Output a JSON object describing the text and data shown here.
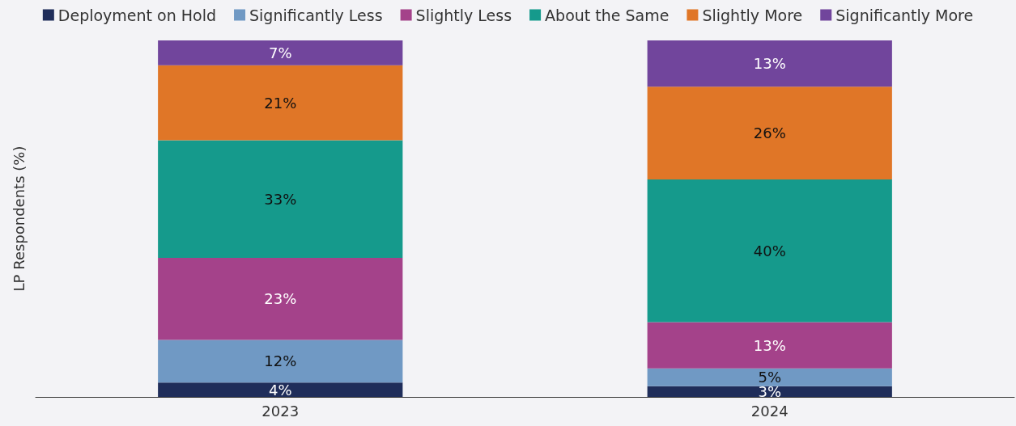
{
  "chart_data": {
    "type": "bar",
    "stacked": true,
    "ylabel": "LP Respondents (%)",
    "categories": [
      "2023",
      "2024"
    ],
    "ylim": [
      0,
      100
    ],
    "tick_labels": "x",
    "grid": false,
    "legend": "top",
    "series": [
      {
        "name": "Deployment on Hold",
        "color": "#1f2d5a",
        "values": [
          4,
          3
        ],
        "value_labels": [
          "4%",
          "3%"
        ]
      },
      {
        "name": "Significantly Less",
        "color": "#7099c4",
        "values": [
          12,
          5
        ],
        "value_labels": [
          "12%",
          "5%"
        ]
      },
      {
        "name": "Slightly Less",
        "color": "#a4428a",
        "values": [
          23,
          13
        ],
        "value_labels": [
          "23%",
          "13%"
        ]
      },
      {
        "name": "About the Same",
        "color": "#159a8c",
        "values": [
          33,
          40
        ],
        "value_labels": [
          "33%",
          "40%"
        ]
      },
      {
        "name": "Slightly More",
        "color": "#e07627",
        "values": [
          21,
          26
        ],
        "value_labels": [
          "21%",
          "26%"
        ]
      },
      {
        "name": "Significantly More",
        "color": "#71459c",
        "values": [
          7,
          13
        ],
        "value_labels": [
          "7%",
          "13%"
        ]
      }
    ]
  }
}
